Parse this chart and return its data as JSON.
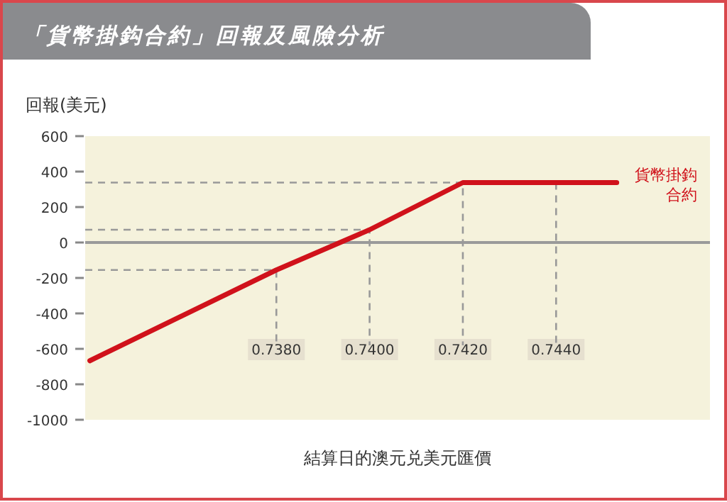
{
  "chart_data": {
    "type": "line",
    "title": "「貨幣掛鈎合約」回報及風險分析",
    "ylabel": "回報(美元)",
    "xlabel": "結算日的澳元兑美元匯價",
    "x": [
      0.734,
      0.738,
      0.74,
      0.742,
      0.7453
    ],
    "series": [
      {
        "x": [
          0.7339,
          0.738,
          0.738
        ],
        "color": "#999999",
        "line_style": "dashed",
        "values": [
          -155,
          -155,
          -580
        ]
      },
      {
        "x": [
          0.7339,
          0.74,
          0.74
        ],
        "color": "#999999",
        "line_style": "dashed",
        "values": [
          72,
          72,
          -580
        ]
      },
      {
        "x": [
          0.7339,
          0.742,
          0.742
        ],
        "color": "#999999",
        "line_style": "dashed",
        "values": [
          338,
          338,
          -580
        ]
      },
      {
        "x": [
          0.744,
          0.744
        ],
        "color": "#999999",
        "line_style": "dashed",
        "values": [
          338,
          -580
        ]
      },
      {
        "name": "貨幣掛鈎合約",
        "color": "#d0121b",
        "values": [
          -667,
          -155,
          72,
          338,
          338
        ]
      }
    ],
    "xlim": [
      0.7339,
      0.7473
    ],
    "xticks": [
      {
        "value": 0.738,
        "label": "0.7380"
      },
      {
        "value": 0.74,
        "label": "0.7400"
      },
      {
        "value": 0.742,
        "label": "0.7420"
      },
      {
        "value": 0.744,
        "label": "0.7440"
      }
    ],
    "ylim": [
      -1000,
      600
    ],
    "yticks": [
      -1000,
      -800,
      -600,
      -400,
      -200,
      0,
      200,
      400,
      600
    ],
    "ref_lines": [
      {
        "axis": "y",
        "value": 0,
        "color": "#9a9a9a",
        "line_style": "solid"
      }
    ],
    "grid": false,
    "legend": "right",
    "marker": "none",
    "line_style": "solid"
  }
}
